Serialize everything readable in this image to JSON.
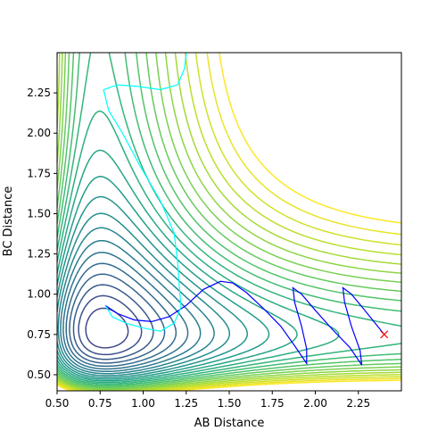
{
  "chart_data": {
    "type": "contour",
    "title": "",
    "xlabel": "AB Distance",
    "ylabel": "BC Distance",
    "xlim": [
      0.5,
      2.5
    ],
    "ylim": [
      0.4,
      2.5
    ],
    "xticks": [
      0.5,
      0.75,
      1.0,
      1.25,
      1.5,
      1.75,
      2.0,
      2.25
    ],
    "xtick_labels": [
      "0.50",
      "0.75",
      "1.00",
      "1.25",
      "1.50",
      "1.75",
      "2.00",
      "2.25"
    ],
    "yticks": [
      0.5,
      0.75,
      1.0,
      1.25,
      1.5,
      1.75,
      2.0,
      2.25
    ],
    "ytick_labels": [
      "0.50",
      "0.75",
      "1.00",
      "1.25",
      "1.50",
      "1.75",
      "2.00",
      "2.25"
    ],
    "grid": false,
    "colormap": "viridis",
    "potential": {
      "description": "LEPS-like potential energy surface, symmetric in AB and BC",
      "well_distance": 0.74,
      "contour_levels": 30
    },
    "trajectories": [
      {
        "color": "#0000ff",
        "points": [
          [
            0.78,
            0.93
          ],
          [
            0.85,
            0.88
          ],
          [
            0.95,
            0.84
          ],
          [
            1.05,
            0.83
          ],
          [
            1.15,
            0.86
          ],
          [
            1.25,
            0.93
          ],
          [
            1.35,
            1.03
          ],
          [
            1.45,
            1.08
          ],
          [
            1.52,
            1.07
          ],
          [
            1.6,
            1.01
          ],
          [
            1.7,
            0.91
          ],
          [
            1.8,
            0.8
          ],
          [
            1.88,
            0.68
          ],
          [
            1.95,
            0.57
          ],
          [
            1.95,
            0.66
          ],
          [
            1.92,
            0.8
          ],
          [
            1.88,
            0.95
          ],
          [
            1.87,
            1.04
          ],
          [
            1.92,
            1.0
          ],
          [
            2.0,
            0.9
          ],
          [
            2.1,
            0.78
          ],
          [
            2.2,
            0.67
          ],
          [
            2.27,
            0.56
          ],
          [
            2.26,
            0.65
          ],
          [
            2.21,
            0.8
          ],
          [
            2.17,
            0.95
          ],
          [
            2.16,
            1.04
          ],
          [
            2.21,
            1.0
          ],
          [
            2.28,
            0.91
          ],
          [
            2.34,
            0.83
          ],
          [
            2.4,
            0.75
          ]
        ]
      },
      {
        "color": "#00ffff",
        "points": [
          [
            0.78,
            0.93
          ],
          [
            0.82,
            0.86
          ],
          [
            0.9,
            0.82
          ],
          [
            1.0,
            0.79
          ],
          [
            1.1,
            0.77
          ],
          [
            1.18,
            0.82
          ],
          [
            1.22,
            0.92
          ],
          [
            1.21,
            1.05
          ],
          [
            1.2,
            1.2
          ],
          [
            1.18,
            1.38
          ],
          [
            1.1,
            1.58
          ],
          [
            0.98,
            1.8
          ],
          [
            0.88,
            2.0
          ],
          [
            0.8,
            2.14
          ],
          [
            0.77,
            2.27
          ],
          [
            0.85,
            2.3
          ],
          [
            0.97,
            2.29
          ],
          [
            1.1,
            2.27
          ],
          [
            1.2,
            2.3
          ],
          [
            1.24,
            2.4
          ],
          [
            1.25,
            2.5
          ]
        ]
      }
    ],
    "markers": [
      {
        "x": 2.4,
        "y": 0.75,
        "symbol": "x",
        "color": "#ff0000"
      }
    ]
  }
}
